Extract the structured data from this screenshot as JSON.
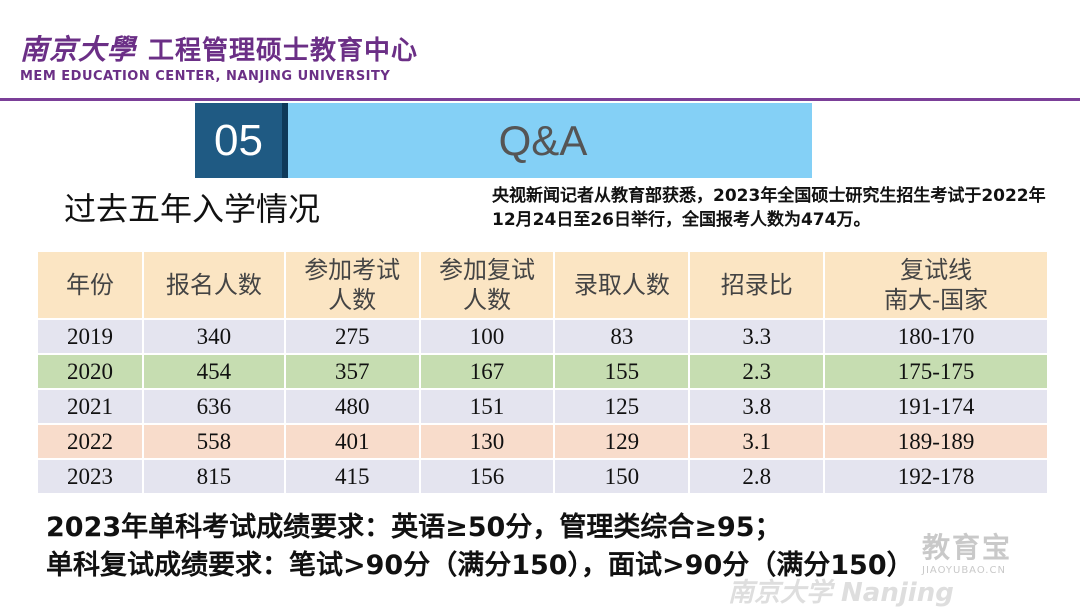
{
  "header": {
    "logo_cn": "南京大學",
    "title": "工程管理硕士教育中心",
    "subtitle_en": "MEM EDUCATION CENTER, NANJING UNIVERSITY"
  },
  "section": {
    "number": "05",
    "title": "Q&A"
  },
  "page_subtitle": "过去五年入学情况",
  "news": "央视新闻记者从教育部获悉，2023年全国硕士研究生招生考试于2022年12月24日至26日举行，全国报考人数为474万。",
  "table": {
    "headers": [
      [
        "年份"
      ],
      [
        "报名人数"
      ],
      [
        "参加考试",
        "人数"
      ],
      [
        "参加复试",
        "人数"
      ],
      [
        "录取人数"
      ],
      [
        "招录比"
      ],
      [
        "复试线",
        "南大-国家"
      ]
    ],
    "rows": [
      [
        "2019",
        "340",
        "275",
        "100",
        "83",
        "3.3",
        "180-170"
      ],
      [
        "2020",
        "454",
        "357",
        "167",
        "155",
        "2.3",
        "175-175"
      ],
      [
        "2021",
        "636",
        "480",
        "151",
        "125",
        "3.8",
        "191-174"
      ],
      [
        "2022",
        "558",
        "401",
        "130",
        "129",
        "3.1",
        "189-189"
      ],
      [
        "2023",
        "815",
        "415",
        "156",
        "150",
        "2.8",
        "192-178"
      ]
    ]
  },
  "requirements": {
    "line1": "2023年单科考试成绩要求：英语≥50分，管理类综合≥95；",
    "line2": "单科复试成绩要求：笔试>90分（满分150），面试>90分（满分150）"
  },
  "watermark": {
    "site": "教育宝",
    "url": "JIAOYUBAO.CN",
    "text": "南京大学 Nanjing"
  }
}
